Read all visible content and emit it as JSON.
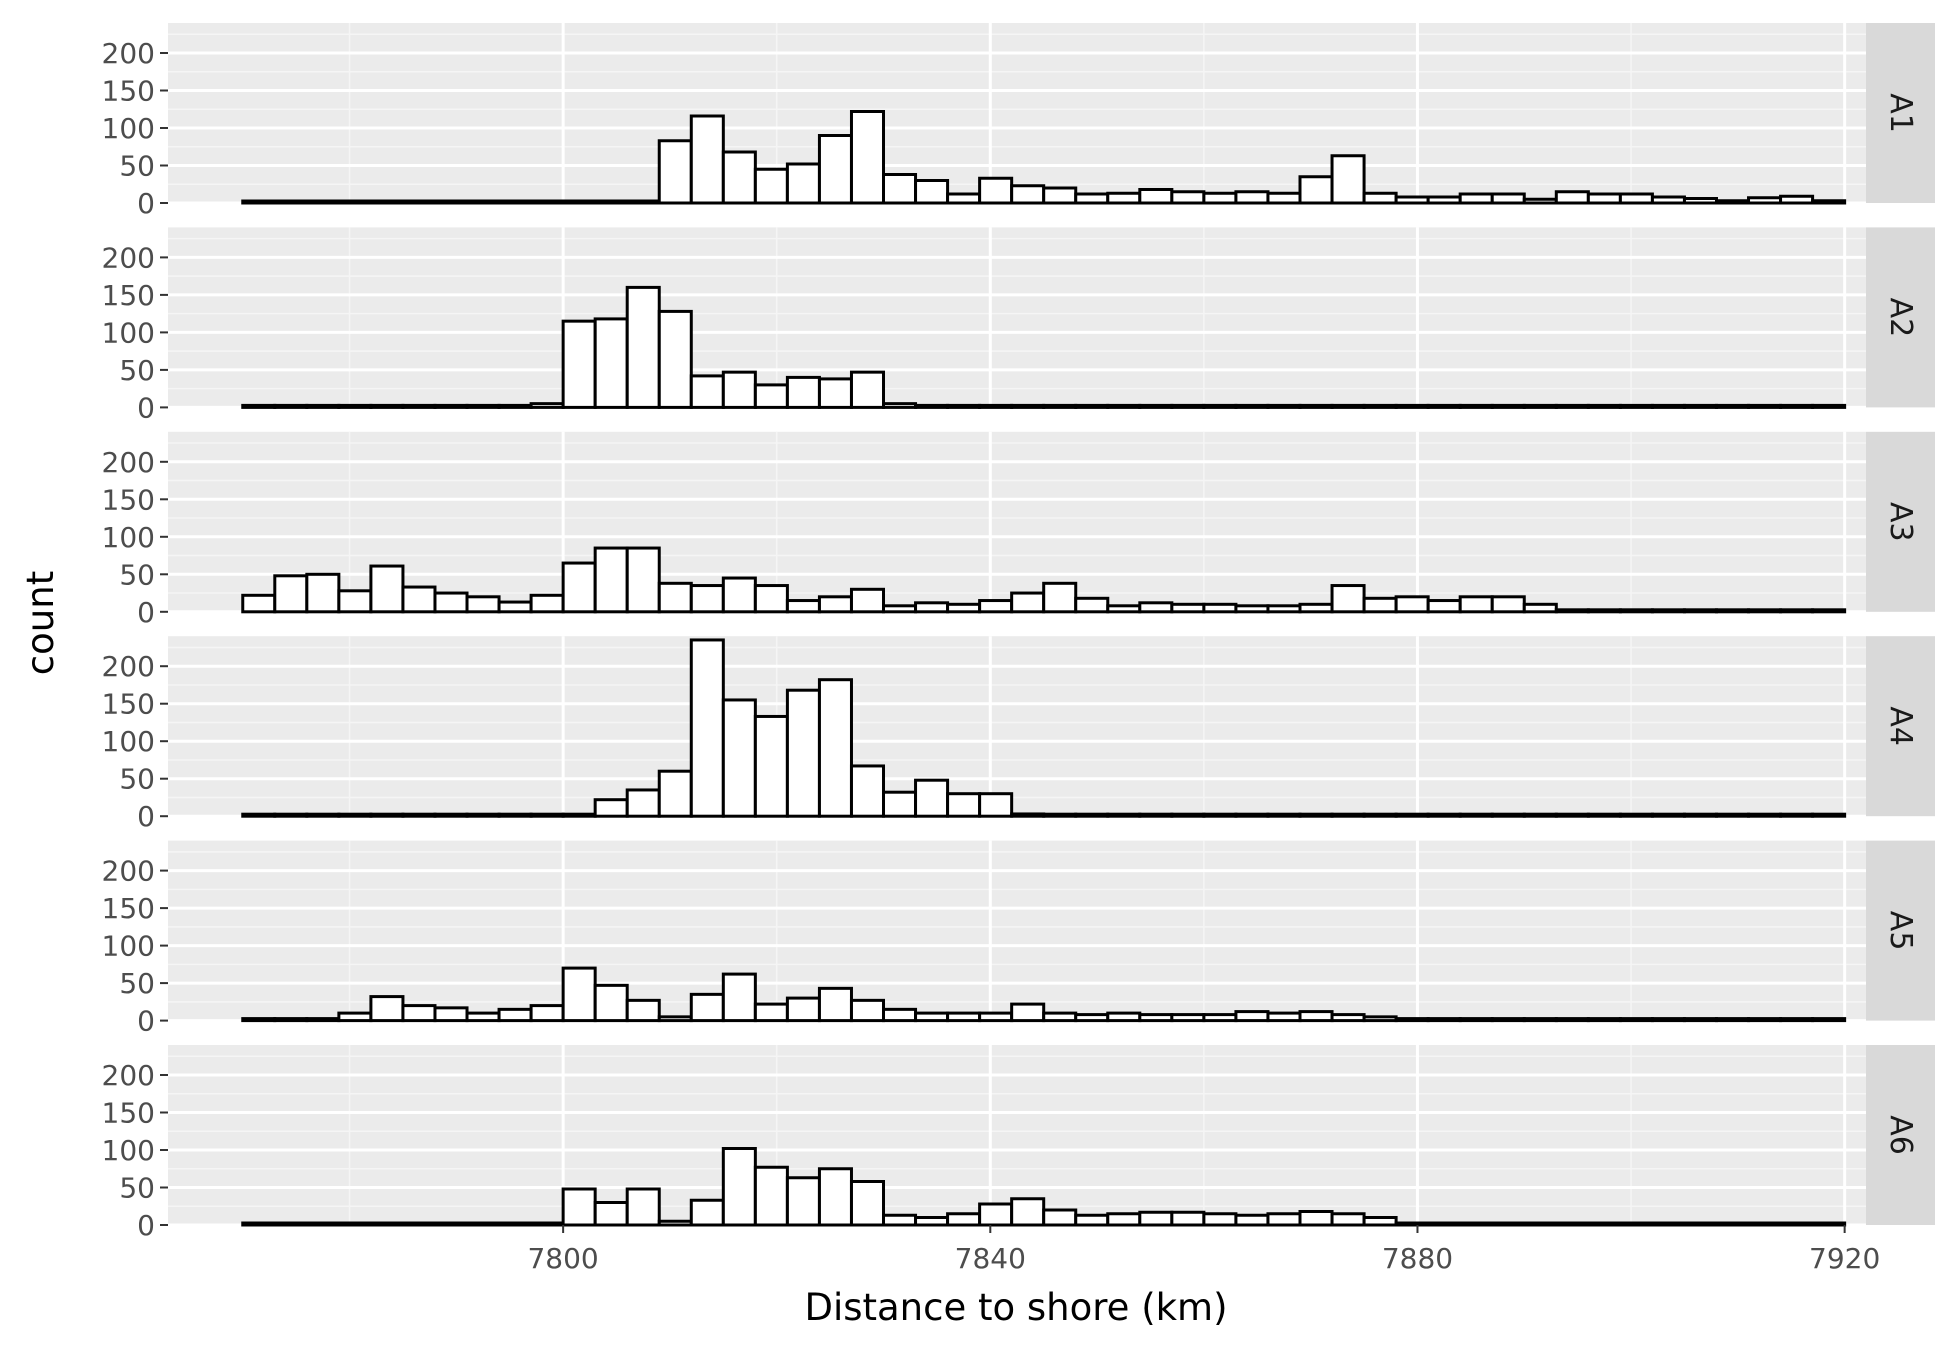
{
  "chart_data": {
    "type": "bar",
    "subtype": "faceted histogram",
    "xlabel": "Distance to shore (km)",
    "ylabel": "count",
    "x_ticks": [
      7800,
      7840,
      7880,
      7920
    ],
    "y_ticks": [
      0,
      50,
      100,
      150,
      200
    ],
    "xlim": [
      7763,
      7922
    ],
    "ylim": [
      0,
      240
    ],
    "bin_width": 3,
    "first_bin_start": 7770,
    "grid": true,
    "background": "#EBEBEB",
    "strip_color": "#D9D9D9",
    "bar_fill": "#FFFFFF",
    "bar_outline": "#000000",
    "panels": [
      {
        "label": "A1",
        "values": [
          0,
          0,
          0,
          0,
          0,
          0,
          0,
          0,
          0,
          0,
          0,
          0,
          0,
          83,
          116,
          68,
          45,
          52,
          90,
          122,
          38,
          30,
          12,
          33,
          23,
          20,
          12,
          13,
          18,
          15,
          13,
          15,
          13,
          35,
          63,
          13,
          8,
          8,
          12,
          12,
          5,
          15,
          12,
          12,
          8,
          6,
          3,
          7,
          9,
          3
        ]
      },
      {
        "label": "A2",
        "values": [
          0,
          0,
          0,
          0,
          0,
          0,
          0,
          0,
          0,
          5,
          115,
          118,
          160,
          128,
          42,
          47,
          30,
          40,
          38,
          47,
          5,
          0,
          0,
          0,
          0,
          0,
          0,
          0,
          0,
          0,
          0,
          0,
          0,
          0,
          0,
          0,
          0,
          0,
          0,
          0,
          0,
          0,
          0,
          0,
          0,
          0,
          0,
          0,
          0,
          0
        ]
      },
      {
        "label": "A3",
        "values": [
          22,
          48,
          50,
          28,
          61,
          33,
          25,
          20,
          13,
          22,
          65,
          85,
          85,
          38,
          35,
          45,
          35,
          15,
          20,
          30,
          8,
          12,
          10,
          15,
          25,
          38,
          18,
          8,
          12,
          10,
          10,
          8,
          8,
          10,
          35,
          18,
          20,
          15,
          20,
          20,
          10,
          0,
          0,
          0,
          0,
          0,
          0,
          0,
          0,
          0
        ]
      },
      {
        "label": "A4",
        "values": [
          0,
          0,
          0,
          0,
          0,
          0,
          0,
          0,
          0,
          0,
          0,
          22,
          35,
          60,
          235,
          155,
          133,
          168,
          182,
          67,
          32,
          48,
          30,
          30,
          3,
          0,
          0,
          0,
          0,
          0,
          0,
          0,
          0,
          0,
          0,
          0,
          0,
          0,
          0,
          0,
          0,
          0,
          0,
          0,
          0,
          0,
          0,
          0,
          0,
          0
        ]
      },
      {
        "label": "A5",
        "values": [
          0,
          0,
          0,
          10,
          32,
          20,
          17,
          10,
          15,
          20,
          70,
          47,
          27,
          5,
          35,
          62,
          22,
          30,
          43,
          27,
          15,
          10,
          10,
          10,
          22,
          10,
          8,
          10,
          8,
          8,
          8,
          12,
          10,
          12,
          8,
          5,
          0,
          0,
          0,
          0,
          0,
          0,
          0,
          0,
          0,
          0,
          0,
          0,
          0,
          0
        ]
      },
      {
        "label": "A6",
        "values": [
          0,
          0,
          0,
          0,
          0,
          0,
          0,
          0,
          0,
          0,
          48,
          30,
          48,
          5,
          33,
          102,
          77,
          63,
          75,
          58,
          13,
          10,
          15,
          28,
          35,
          20,
          13,
          15,
          17,
          17,
          15,
          13,
          15,
          18,
          15,
          10,
          0,
          0,
          0,
          0,
          0,
          0,
          0,
          0,
          0,
          0,
          0,
          0,
          0,
          0
        ]
      }
    ]
  }
}
